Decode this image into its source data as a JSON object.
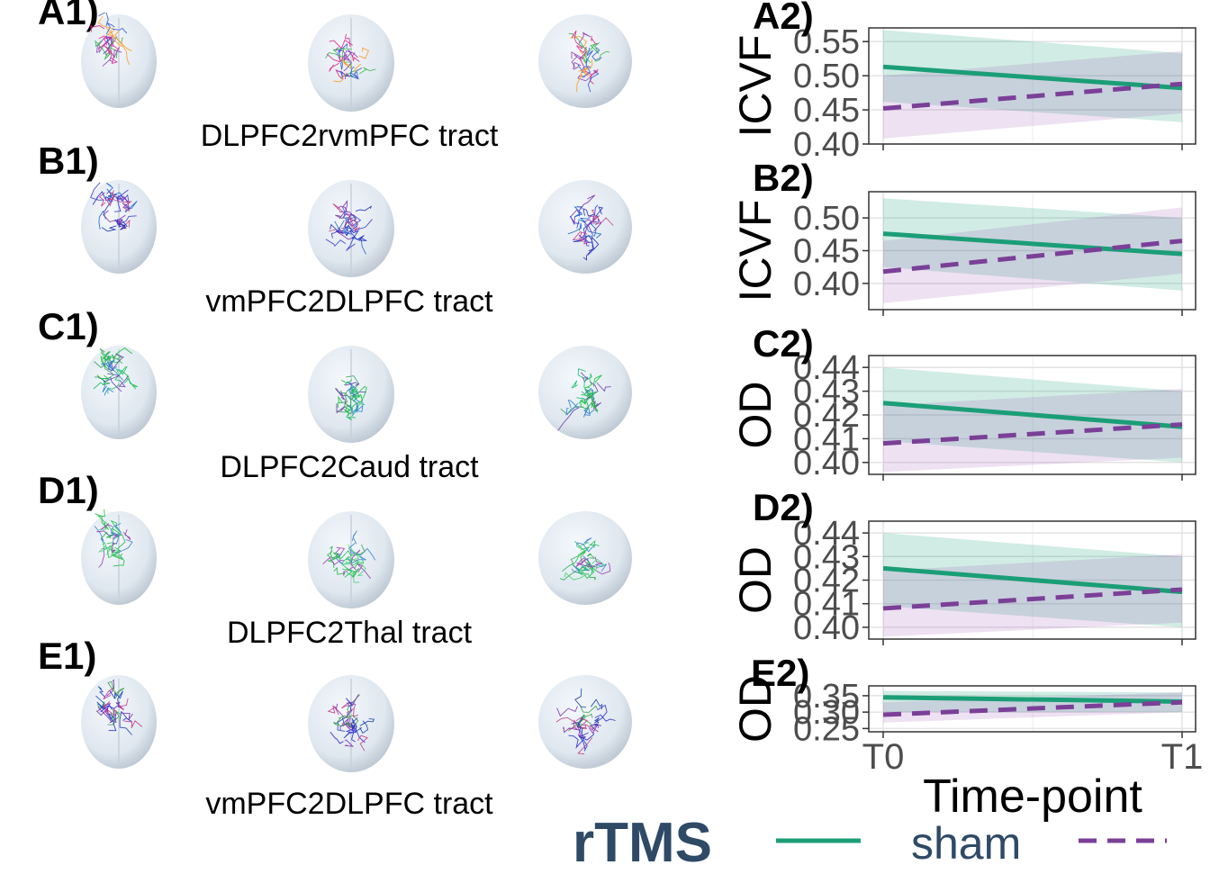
{
  "left_panels": [
    {
      "label": "A1)",
      "tract": "DLPFC2rvmPFC tract"
    },
    {
      "label": "B1)",
      "tract": "vmPFC2DLPFC tract"
    },
    {
      "label": "C1)",
      "tract": "DLPFC2Caud tract"
    },
    {
      "label": "D1)",
      "tract": "DLPFC2Thal tract"
    },
    {
      "label": "E1)",
      "tract": "vmPFC2DLPFC tract"
    }
  ],
  "brain_views": [
    "brain-top-view",
    "brain-front-view",
    "brain-side-view"
  ],
  "colors": {
    "rtms": "#1b9e77",
    "sham": "#7b3f98",
    "rtms_fill": "#1b9e77",
    "sham_fill": "#9b59b6",
    "legend_text": "#2e4a66"
  },
  "legend": {
    "title": "rTMS",
    "entries": [
      {
        "label": "",
        "style": "solid",
        "color": "#1b9e77"
      },
      {
        "label": "sham",
        "style": "dashed",
        "color": "#7b3f98"
      }
    ]
  },
  "chart_data": [
    {
      "type": "line",
      "panel": "A2)",
      "ylabel": "ICVF",
      "categories": [
        "T0",
        "T1"
      ],
      "ylim": [
        0.4,
        0.57
      ],
      "yticks": [
        "0.40",
        "0.45",
        "0.50",
        "0.55"
      ],
      "series": [
        {
          "name": "",
          "style": "solid",
          "values": [
            0.513,
            0.482
          ],
          "ci_low": [
            0.462,
            0.432
          ],
          "ci_high": [
            0.567,
            0.533
          ]
        },
        {
          "name": "sham",
          "style": "dashed",
          "values": [
            0.452,
            0.488
          ],
          "ci_low": [
            0.408,
            0.445
          ],
          "ci_high": [
            0.5,
            0.536
          ]
        }
      ]
    },
    {
      "type": "line",
      "panel": "B2)",
      "ylabel": "ICVF",
      "categories": [
        "T0",
        "T1"
      ],
      "ylim": [
        0.36,
        0.54
      ],
      "yticks": [
        "0.40",
        "0.45",
        "0.50"
      ],
      "series": [
        {
          "name": "",
          "style": "solid",
          "values": [
            0.476,
            0.445
          ],
          "ci_low": [
            0.425,
            0.389
          ],
          "ci_high": [
            0.53,
            0.5
          ]
        },
        {
          "name": "sham",
          "style": "dashed",
          "values": [
            0.418,
            0.465
          ],
          "ci_low": [
            0.37,
            0.415
          ],
          "ci_high": [
            0.465,
            0.516
          ]
        }
      ]
    },
    {
      "type": "line",
      "panel": "C2)",
      "ylabel": "OD",
      "categories": [
        "T0",
        "T1"
      ],
      "ylim": [
        0.395,
        0.445
      ],
      "yticks": [
        "0.40",
        "0.41",
        "0.42",
        "0.43",
        "0.44"
      ],
      "series": [
        {
          "name": "",
          "style": "solid",
          "values": [
            0.425,
            0.415
          ],
          "ci_low": [
            0.409,
            0.4
          ],
          "ci_high": [
            0.44,
            0.43
          ]
        },
        {
          "name": "sham",
          "style": "dashed",
          "values": [
            0.408,
            0.416
          ],
          "ci_low": [
            0.396,
            0.402
          ],
          "ci_high": [
            0.424,
            0.431
          ]
        }
      ]
    },
    {
      "type": "line",
      "panel": "D2)",
      "ylabel": "OD",
      "categories": [
        "T0",
        "T1"
      ],
      "ylim": [
        0.395,
        0.445
      ],
      "yticks": [
        "0.40",
        "0.41",
        "0.42",
        "0.43",
        "0.44"
      ],
      "series": [
        {
          "name": "",
          "style": "solid",
          "values": [
            0.425,
            0.415
          ],
          "ci_low": [
            0.409,
            0.4
          ],
          "ci_high": [
            0.44,
            0.43
          ]
        },
        {
          "name": "sham",
          "style": "dashed",
          "values": [
            0.408,
            0.416
          ],
          "ci_low": [
            0.396,
            0.402
          ],
          "ci_high": [
            0.424,
            0.431
          ]
        }
      ]
    },
    {
      "type": "line",
      "panel": "E2)",
      "ylabel": "OD",
      "categories": [
        "T0",
        "T1"
      ],
      "ylim": [
        0.24,
        0.38
      ],
      "yticks": [
        "0.25",
        "0.30",
        "0.35"
      ],
      "series": [
        {
          "name": "",
          "style": "solid",
          "values": [
            0.345,
            0.332
          ],
          "ci_low": [
            0.3,
            0.3
          ],
          "ci_high": [
            0.365,
            0.36
          ]
        },
        {
          "name": "sham",
          "style": "dashed",
          "values": [
            0.292,
            0.33
          ],
          "ci_low": [
            0.268,
            0.3
          ],
          "ci_high": [
            0.33,
            0.36
          ]
        }
      ]
    }
  ],
  "shared_x": {
    "label": "Time-point",
    "ticks": [
      "T0",
      "T1"
    ]
  }
}
